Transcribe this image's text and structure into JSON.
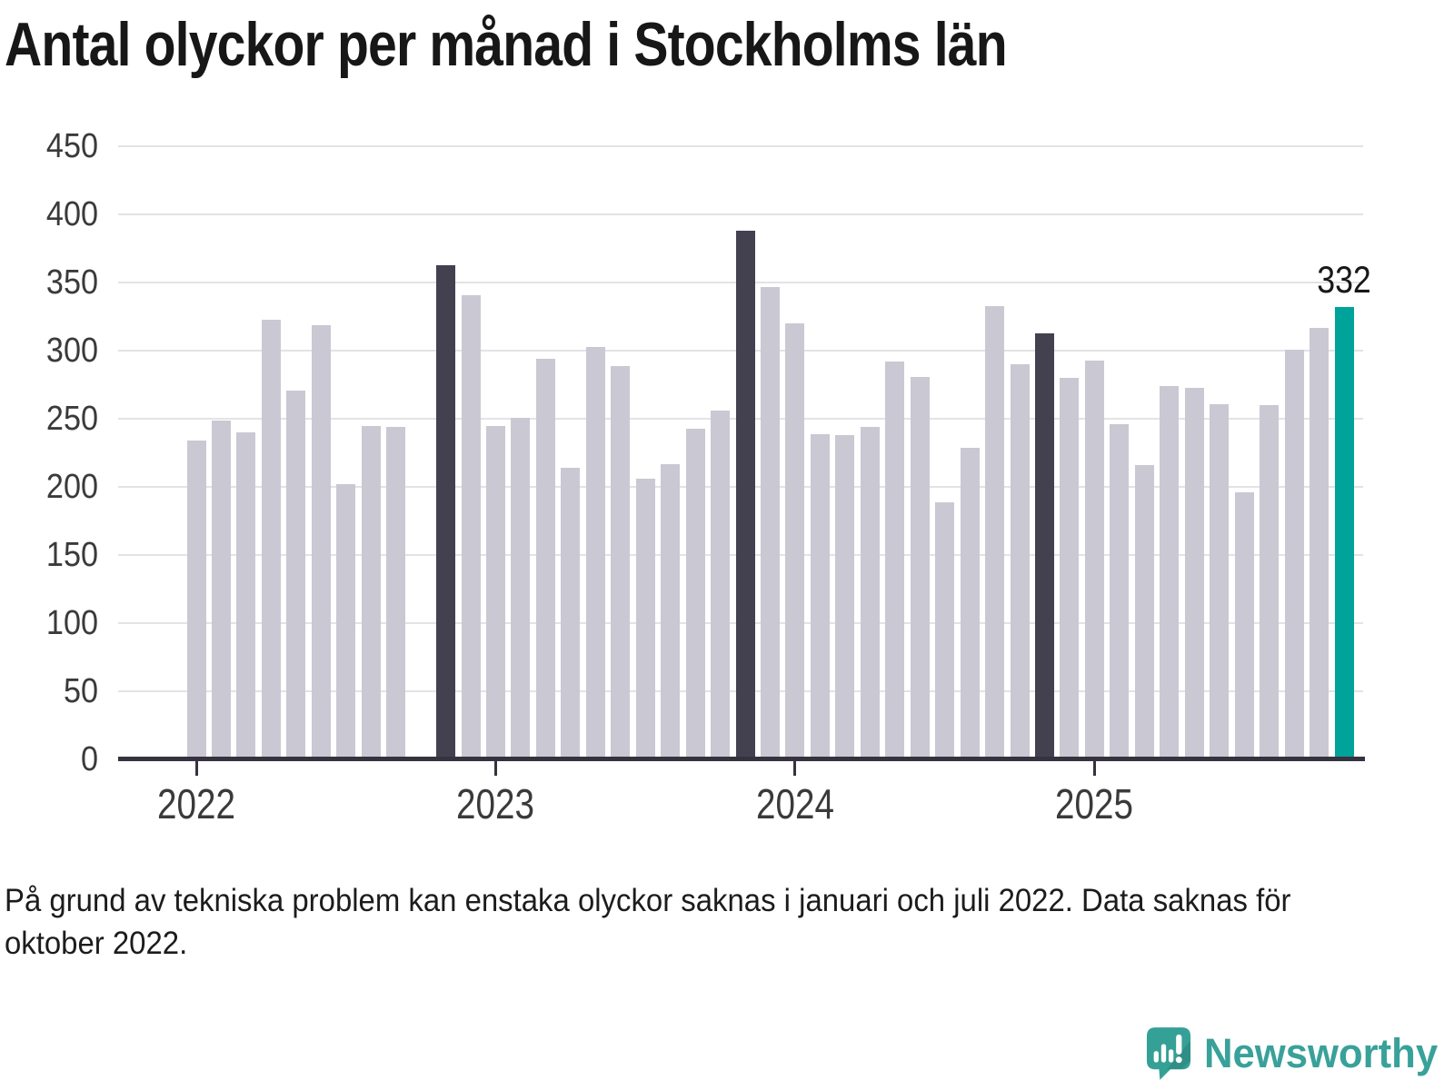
{
  "title": "Antal olyckor per månad i Stockholms län",
  "note": {
    "line1": "På grund av tekniska problem kan enstaka olyckor saknas i januari och juli 2022. Data saknas för",
    "line2": "oktober 2022.",
    "full_text": "På grund av tekniska problem kan enstaka olyckor saknas i januari och juli 2022. Data saknas för oktober 2022."
  },
  "logo": {
    "text": "Newsworthy",
    "icon": "newsworthy-speech-bubble-chart-icon",
    "color": "#38a19a"
  },
  "colors": {
    "bar_default": "#cac8d3",
    "bar_highlight_dark": "#434050",
    "bar_highlight_accent": "#00a39a",
    "axis_line": "#36323f",
    "gridline": "#e3e2e6",
    "tick_label": "#3a3a3a",
    "title_text": "#171717",
    "annotation_text": "#181818"
  },
  "chart_data": {
    "type": "bar",
    "title": "Antal olyckor per månad i Stockholms län",
    "xlabel": "",
    "ylabel": "",
    "ylim": [
      0,
      450
    ],
    "grid": "horizontal",
    "legend": "none",
    "x": [
      "2022-01",
      "2022-02",
      "2022-03",
      "2022-04",
      "2022-05",
      "2022-06",
      "2022-07",
      "2022-08",
      "2022-09",
      "2022-10",
      "2022-11",
      "2022-12",
      "2023-01",
      "2023-02",
      "2023-03",
      "2023-04",
      "2023-05",
      "2023-06",
      "2023-07",
      "2023-08",
      "2023-09",
      "2023-10",
      "2023-11",
      "2023-12",
      "2024-01",
      "2024-02",
      "2024-03",
      "2024-04",
      "2024-05",
      "2024-06",
      "2024-07",
      "2024-08",
      "2024-09",
      "2024-10",
      "2024-11",
      "2024-12",
      "2025-01",
      "2025-02",
      "2025-03",
      "2025-04",
      "2025-05",
      "2025-06",
      "2025-07",
      "2025-08",
      "2025-09",
      "2025-10",
      "2025-11"
    ],
    "values": [
      234,
      249,
      240,
      323,
      271,
      319,
      202,
      245,
      244,
      null,
      363,
      341,
      245,
      251,
      294,
      214,
      303,
      289,
      206,
      217,
      243,
      256,
      388,
      347,
      320,
      239,
      238,
      244,
      292,
      281,
      189,
      229,
      333,
      290,
      313,
      280,
      293,
      246,
      216,
      274,
      273,
      261,
      196,
      260,
      301,
      317,
      332
    ],
    "missing_months": [
      "2022-10"
    ],
    "highlight_dark_months": [
      "2022-11",
      "2023-11",
      "2024-11"
    ],
    "highlight_accent_month": "2025-11",
    "annotation": {
      "month": "2025-11",
      "label": "332"
    },
    "ytick_values": [
      0,
      50,
      100,
      150,
      200,
      250,
      300,
      350,
      400,
      450
    ],
    "year_ticks": [
      {
        "index": 0,
        "label": "2022"
      },
      {
        "index": 12,
        "label": "2023"
      },
      {
        "index": 24,
        "label": "2024"
      },
      {
        "index": 36,
        "label": "2025"
      }
    ]
  }
}
